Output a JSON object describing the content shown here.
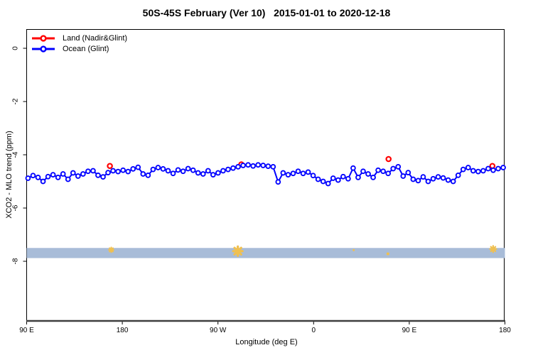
{
  "title": "50S-45S February (Ver 10)   2015-01-01 to 2020-12-18",
  "legend": {
    "items": [
      {
        "label": "Land (Nadir&Glint)",
        "color": "#ff0000"
      },
      {
        "label": "Ocean (Glint)",
        "color": "#0000ff"
      }
    ]
  },
  "axes": {
    "x": {
      "label": "Longitude (deg E)",
      "ticks": [
        {
          "deg": 90,
          "label": "90 E"
        },
        {
          "deg": 180,
          "label": "180"
        },
        {
          "deg": 270,
          "label": "90 W"
        },
        {
          "deg": 360,
          "label": "0"
        },
        {
          "deg": 450,
          "label": "90 E"
        },
        {
          "deg": 540,
          "label": "180"
        }
      ]
    },
    "y": {
      "label": "XCO2 - MLO trend (ppm)",
      "ticks": [
        {
          "value": 0,
          "label": "0"
        },
        {
          "value": -2,
          "label": "-2"
        },
        {
          "value": -4,
          "label": "-4"
        },
        {
          "value": -6,
          "label": "-6"
        },
        {
          "value": -8,
          "label": "-8"
        }
      ]
    }
  },
  "chart_data": {
    "type": "line",
    "title": "50S-45S February (Ver 10)   2015-01-01 to 2020-12-18",
    "xlabel": "Longitude (deg E)",
    "ylabel": "XCO2 - MLO trend (ppm)",
    "xlim": [
      90,
      540
    ],
    "ylim": [
      -10.2,
      0.72
    ],
    "x_axis_note": "longitude unwrapped eastward from 90E; labels shown mod 360",
    "grid": false,
    "legend_position": "top-left inside",
    "series": [
      {
        "name": "Ocean (Glint)",
        "color": "#0000ff",
        "marker": "open-circle",
        "line": true,
        "x_start_deg": 91.3,
        "x_step_deg": 4.706,
        "values": [
          -4.88,
          -4.78,
          -4.85,
          -5.0,
          -4.82,
          -4.75,
          -4.85,
          -4.72,
          -4.92,
          -4.68,
          -4.8,
          -4.72,
          -4.62,
          -4.6,
          -4.77,
          -4.83,
          -4.67,
          -4.6,
          -4.63,
          -4.58,
          -4.63,
          -4.53,
          -4.47,
          -4.72,
          -4.77,
          -4.55,
          -4.48,
          -4.53,
          -4.6,
          -4.7,
          -4.57,
          -4.62,
          -4.52,
          -4.58,
          -4.68,
          -4.72,
          -4.6,
          -4.75,
          -4.68,
          -4.6,
          -4.55,
          -4.5,
          -4.45,
          -4.4,
          -4.38,
          -4.42,
          -4.38,
          -4.4,
          -4.43,
          -4.45,
          -5.02,
          -4.68,
          -4.75,
          -4.7,
          -4.62,
          -4.7,
          -4.65,
          -4.78,
          -4.92,
          -5.0,
          -5.08,
          -4.88,
          -4.95,
          -4.82,
          -4.9,
          -4.5,
          -4.85,
          -4.62,
          -4.72,
          -4.85,
          -4.58,
          -4.62,
          -4.7,
          -4.52,
          -4.45,
          -4.8,
          -4.67,
          -4.92,
          -4.97,
          -4.83,
          -5.0,
          -4.9,
          -4.83,
          -4.87,
          -4.95,
          -5.0,
          -4.77,
          -4.55,
          -4.48,
          -4.6,
          -4.63,
          -4.6,
          -4.52,
          -4.58,
          -4.52,
          -4.48
        ]
      },
      {
        "name": "Land (Nadir&Glint)",
        "color": "#ff0000",
        "marker": "open-circle",
        "line": false,
        "points": [
          {
            "x_deg": 168.3,
            "value": -4.42
          },
          {
            "x_deg": 292.0,
            "value": -4.36
          },
          {
            "x_deg": 430.5,
            "value": -4.16
          },
          {
            "x_deg": 528.2,
            "value": -4.42
          }
        ]
      }
    ],
    "annotations": {
      "horizontal_band": {
        "value_top": -7.5,
        "value_bottom": -7.88,
        "color": "#a8bcd8",
        "extent": "full x range"
      },
      "flag_markers": {
        "shape": "asterisk",
        "color": "#f0c050",
        "points": [
          {
            "x_deg": 169.6,
            "value": -7.57,
            "size": 7
          },
          {
            "x_deg": 288.7,
            "value": -7.62,
            "size": 13
          },
          {
            "x_deg": 397.7,
            "value": -7.58,
            "size": 3
          },
          {
            "x_deg": 429.9,
            "value": -7.72,
            "size": 4
          },
          {
            "x_deg": 528.9,
            "value": -7.54,
            "size": 9
          }
        ]
      }
    }
  }
}
